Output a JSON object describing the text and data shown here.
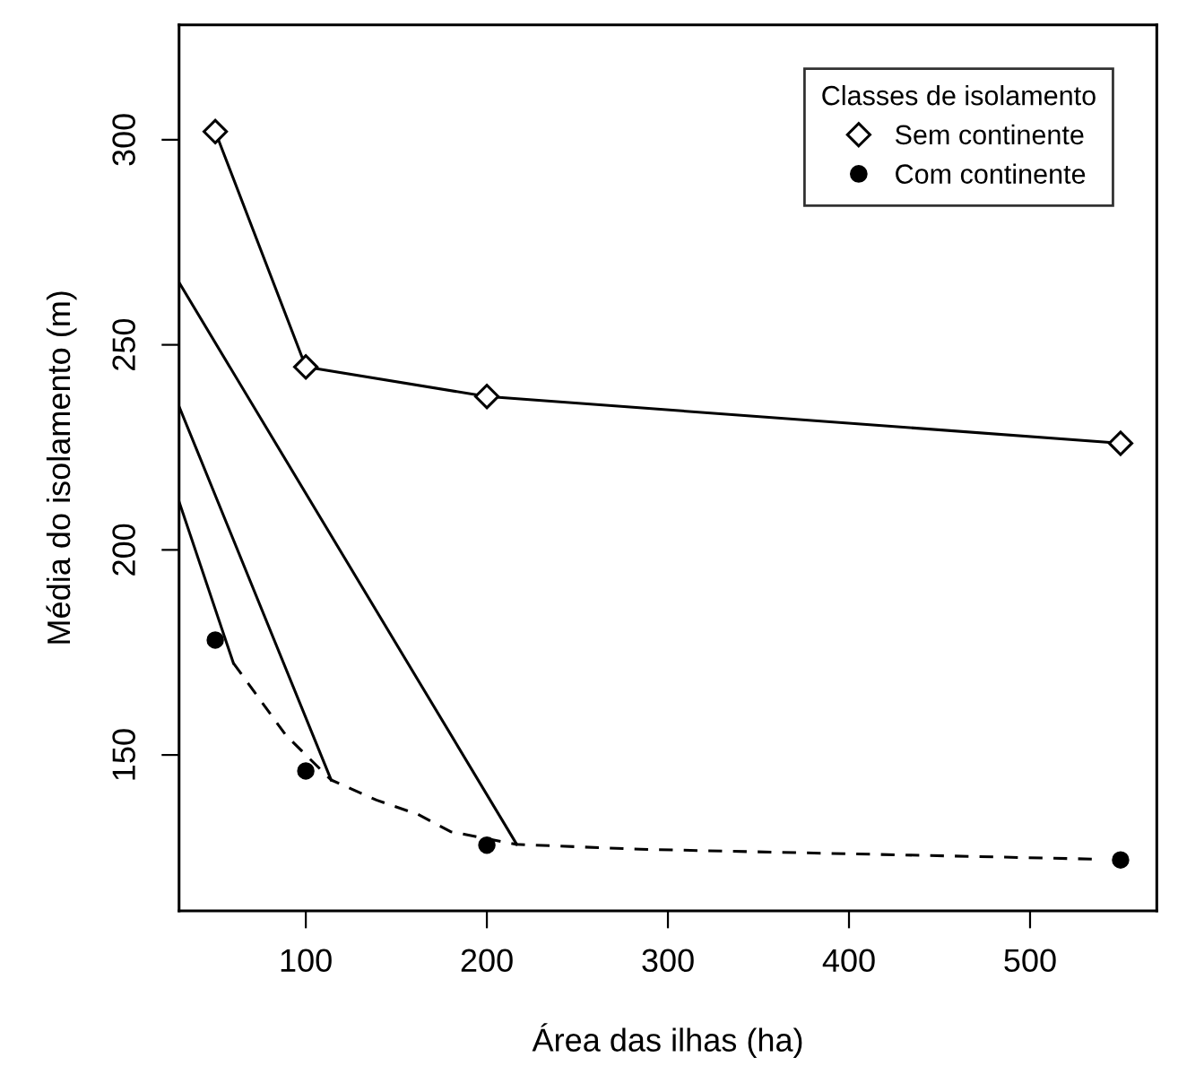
{
  "chart_data": {
    "type": "line",
    "xlabel": "Área das ilhas (ha)",
    "ylabel": "Média do isolamento (m)",
    "legend_title": "Classes de isolamento",
    "legend": "top right",
    "grid": false,
    "xlim": [
      30,
      570
    ],
    "xticks": [
      100,
      200,
      300,
      400,
      500
    ],
    "ylim": [
      112,
      328
    ],
    "yticks": [
      150,
      200,
      250,
      300
    ],
    "series": [
      {
        "name": "Sem continente",
        "marker": "diamond",
        "line_style": "solid",
        "color": "#000000",
        "x": [
          50,
          100,
          200,
          550
        ],
        "values": [
          302,
          244.6,
          237.4,
          226
        ]
      },
      {
        "name": "Com continente",
        "type": "scatter",
        "marker": "circle",
        "color": "#000000",
        "x": [
          50,
          100,
          200,
          550
        ],
        "values": [
          178,
          146.1,
          128,
          124.4
        ]
      },
      {
        "marker": "none",
        "line_style": "dashed",
        "color": "#000000",
        "x": [
          60,
          89,
          114,
          139,
          162,
          180,
          216,
          285,
          536
        ],
        "values": [
          172.4,
          154.8,
          143.9,
          139,
          135.5,
          131.3,
          128.2,
          127,
          124.6
        ]
      },
      {
        "marker": "none",
        "line_style": "solid",
        "color": "#000000",
        "x": [
          30,
          60
        ],
        "values": [
          211.8,
          172.4
        ]
      },
      {
        "marker": "none",
        "line_style": "solid",
        "color": "#000000",
        "x": [
          30,
          114
        ],
        "values": [
          235,
          143.9
        ]
      },
      {
        "marker": "none",
        "line_style": "solid",
        "color": "#000000",
        "x": [
          30,
          216.5
        ],
        "values": [
          265.2,
          128.2
        ]
      }
    ]
  }
}
